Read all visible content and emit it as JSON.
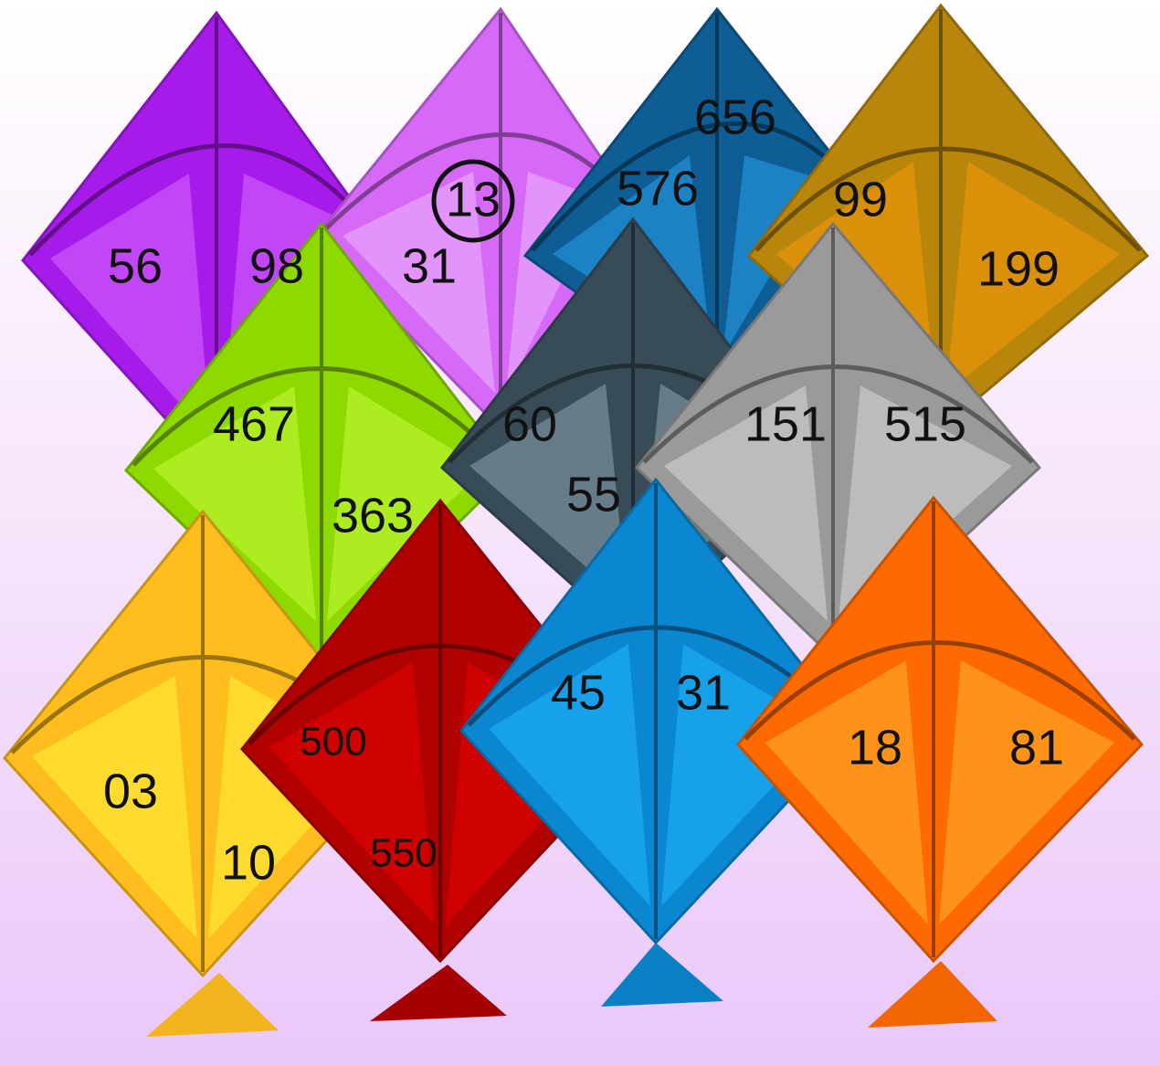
{
  "kites": [
    {
      "id": "purple",
      "color": "#A61BEA",
      "light": "#C64DF7",
      "numbers": [
        "56",
        "98"
      ]
    },
    {
      "id": "violet",
      "color": "#D669F7",
      "light": "#E59CFA",
      "numbers": [
        "13",
        "31"
      ]
    },
    {
      "id": "navy",
      "color": "#0E5D95",
      "light": "#1E88CC",
      "numbers": [
        "656",
        "576"
      ]
    },
    {
      "id": "gold",
      "color": "#B8860B",
      "light": "#E0920A",
      "numbers": [
        "99",
        "199"
      ]
    },
    {
      "id": "lime",
      "color": "#8DD900",
      "light": "#B4EE28",
      "numbers": [
        "467",
        "363"
      ]
    },
    {
      "id": "slate",
      "color": "#384C58",
      "light": "#6E8592",
      "numbers": [
        "60",
        "55"
      ]
    },
    {
      "id": "gray",
      "color": "#9A9A9A",
      "light": "#C2C2C2",
      "numbers": [
        "151",
        "515"
      ]
    },
    {
      "id": "yellow",
      "color": "#FFBE1E",
      "light": "#FFE033",
      "numbers": [
        "03",
        "10"
      ]
    },
    {
      "id": "red",
      "color": "#B00000",
      "light": "#D40000",
      "numbers": [
        "500",
        "550"
      ]
    },
    {
      "id": "blue",
      "color": "#0B86D0",
      "light": "#19A6EE",
      "numbers": [
        "45",
        "31"
      ]
    },
    {
      "id": "orange",
      "color": "#FF6A00",
      "light": "#FF9A1E",
      "numbers": [
        "18",
        "81"
      ]
    }
  ],
  "circled_number": "13"
}
